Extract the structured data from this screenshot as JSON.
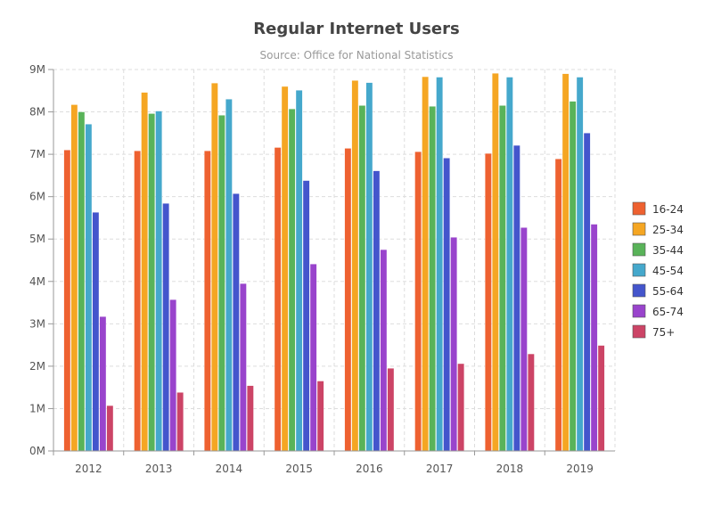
{
  "chart_data": {
    "type": "bar",
    "title": "Regular Internet Users",
    "subtitle": "Source: Office for National Statistics",
    "xlabel": "",
    "ylabel": "",
    "categories": [
      "2012",
      "2013",
      "2014",
      "2015",
      "2016",
      "2017",
      "2018",
      "2019"
    ],
    "ylim": [
      0,
      9000000
    ],
    "yticks": [
      {
        "value": 0,
        "label": "0M"
      },
      {
        "value": 1000000,
        "label": "1M"
      },
      {
        "value": 2000000,
        "label": "2M"
      },
      {
        "value": 3000000,
        "label": "3M"
      },
      {
        "value": 4000000,
        "label": "4M"
      },
      {
        "value": 5000000,
        "label": "5M"
      },
      {
        "value": 6000000,
        "label": "6M"
      },
      {
        "value": 7000000,
        "label": "7M"
      },
      {
        "value": 8000000,
        "label": "8M"
      },
      {
        "value": 9000000,
        "label": "9M"
      }
    ],
    "grid": true,
    "legend_position": "right",
    "series": [
      {
        "name": "16-24",
        "color": "#ee6130",
        "values": [
          7100000,
          7080000,
          7080000,
          7160000,
          7140000,
          7060000,
          7020000,
          6890000
        ]
      },
      {
        "name": "25-34",
        "color": "#f5a623",
        "values": [
          8170000,
          8460000,
          8680000,
          8600000,
          8740000,
          8830000,
          8910000,
          8900000
        ]
      },
      {
        "name": "35-44",
        "color": "#59b359",
        "values": [
          8000000,
          7960000,
          7920000,
          8070000,
          8150000,
          8130000,
          8150000,
          8250000
        ]
      },
      {
        "name": "45-54",
        "color": "#45a8cc",
        "values": [
          7710000,
          8020000,
          8300000,
          8510000,
          8690000,
          8820000,
          8820000,
          8820000
        ]
      },
      {
        "name": "55-64",
        "color": "#4455cc",
        "values": [
          5630000,
          5840000,
          6070000,
          6380000,
          6610000,
          6910000,
          7210000,
          7500000
        ]
      },
      {
        "name": "65-74",
        "color": "#9944cc",
        "values": [
          3170000,
          3570000,
          3950000,
          4410000,
          4750000,
          5040000,
          5270000,
          5350000
        ]
      },
      {
        "name": "75+",
        "color": "#cc4466",
        "values": [
          1070000,
          1380000,
          1540000,
          1650000,
          1950000,
          2060000,
          2290000,
          2490000
        ]
      }
    ]
  }
}
